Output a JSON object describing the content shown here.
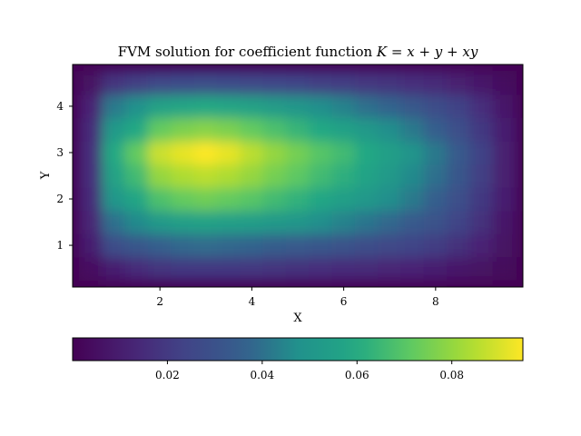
{
  "chart_data": {
    "type": "heatmap",
    "title": "FVM solution for coefficient function K = x + y + xy",
    "title_prefix": "FVM solution for coefficient function ",
    "title_math": "K = x + y + xy",
    "xlabel": "X",
    "ylabel": "Y",
    "xlim": [
      0.1,
      9.9
    ],
    "ylim": [
      0.1,
      4.9
    ],
    "x_ticks": [
      2,
      4,
      6,
      8
    ],
    "x_tick_labels": [
      "2",
      "4",
      "6",
      "8"
    ],
    "y_ticks": [
      1,
      2,
      3,
      4
    ],
    "y_tick_labels": [
      "1",
      "2",
      "3",
      "4"
    ],
    "colormap": "viridis",
    "color_range": [
      0.0,
      0.095
    ],
    "colorbar": {
      "orientation": "horizontal",
      "placement": "bottom",
      "ticks": [
        0.02,
        0.04,
        0.06,
        0.08
      ],
      "tick_labels": [
        "0.02",
        "0.04",
        "0.06",
        "0.08"
      ]
    },
    "peak": {
      "x": 3,
      "y": 3,
      "value": 0.095
    },
    "grid": false,
    "rows_y": [
      0.5,
      1.0,
      1.5,
      2.0,
      2.5,
      3.0,
      3.5,
      4.0,
      4.5
    ],
    "columns_x": [
      0.5,
      1.0,
      1.5,
      2.0,
      2.5,
      3.0,
      3.5,
      4.0,
      4.5,
      5.0,
      5.5,
      6.0,
      6.5,
      7.0,
      7.5,
      8.0,
      8.5,
      9.0,
      9.5
    ],
    "values": [
      [
        0.005,
        0.01,
        0.015,
        0.018,
        0.02,
        0.02,
        0.02,
        0.019,
        0.018,
        0.017,
        0.016,
        0.015,
        0.014,
        0.013,
        0.012,
        0.01,
        0.008,
        0.006,
        0.003
      ],
      [
        0.01,
        0.028,
        0.032,
        0.036,
        0.038,
        0.039,
        0.038,
        0.037,
        0.035,
        0.034,
        0.032,
        0.03,
        0.028,
        0.026,
        0.024,
        0.021,
        0.017,
        0.012,
        0.006
      ],
      [
        0.013,
        0.04,
        0.046,
        0.052,
        0.055,
        0.056,
        0.055,
        0.054,
        0.052,
        0.05,
        0.047,
        0.044,
        0.041,
        0.038,
        0.034,
        0.03,
        0.024,
        0.017,
        0.008
      ],
      [
        0.015,
        0.05,
        0.058,
        0.068,
        0.072,
        0.074,
        0.072,
        0.07,
        0.066,
        0.063,
        0.059,
        0.055,
        0.051,
        0.047,
        0.042,
        0.036,
        0.029,
        0.02,
        0.01
      ],
      [
        0.016,
        0.056,
        0.066,
        0.08,
        0.084,
        0.086,
        0.084,
        0.08,
        0.075,
        0.071,
        0.066,
        0.062,
        0.057,
        0.052,
        0.046,
        0.04,
        0.032,
        0.022,
        0.011
      ],
      [
        0.016,
        0.06,
        0.072,
        0.088,
        0.092,
        0.095,
        0.092,
        0.086,
        0.08,
        0.075,
        0.07,
        0.066,
        0.06,
        0.055,
        0.049,
        0.042,
        0.034,
        0.023,
        0.011
      ],
      [
        0.015,
        0.052,
        0.06,
        0.072,
        0.076,
        0.078,
        0.076,
        0.072,
        0.068,
        0.064,
        0.06,
        0.056,
        0.052,
        0.047,
        0.042,
        0.036,
        0.029,
        0.02,
        0.01
      ],
      [
        0.012,
        0.042,
        0.048,
        0.056,
        0.058,
        0.06,
        0.058,
        0.056,
        0.053,
        0.05,
        0.047,
        0.044,
        0.04,
        0.037,
        0.033,
        0.028,
        0.023,
        0.016,
        0.008
      ],
      [
        0.006,
        0.018,
        0.022,
        0.026,
        0.027,
        0.028,
        0.027,
        0.026,
        0.025,
        0.024,
        0.022,
        0.021,
        0.019,
        0.018,
        0.016,
        0.014,
        0.011,
        0.008,
        0.004
      ]
    ]
  }
}
